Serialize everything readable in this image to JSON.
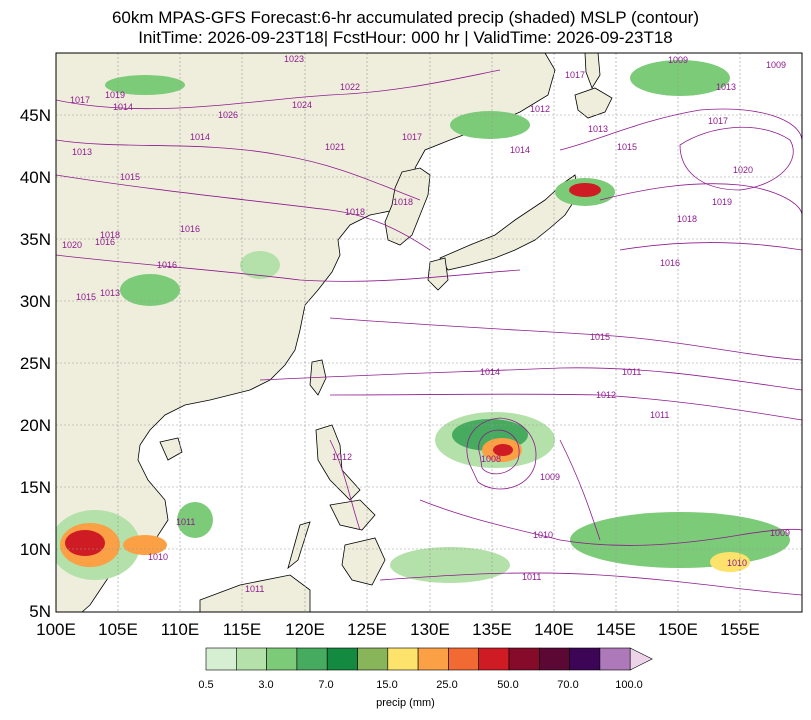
{
  "title": {
    "line1": "60km MPAS-GFS Forecast:6-hr accumulated precip (shaded) MSLP (contour)",
    "line2": "InitTime: 2026-09-23T18| FcstHour: 000 hr | ValidTime: 2026-09-23T18"
  },
  "axes": {
    "lat_ticks": [
      "45N",
      "40N",
      "35N",
      "30N",
      "25N",
      "20N",
      "15N",
      "10N",
      "5N"
    ],
    "lon_ticks": [
      "100E",
      "105E",
      "110E",
      "115E",
      "120E",
      "125E",
      "130E",
      "135E",
      "140E",
      "145E",
      "150E",
      "155E"
    ]
  },
  "colorbar": {
    "label": "precip (mm)",
    "colors": [
      "#d6efd3",
      "#b3e1a9",
      "#7ccb78",
      "#46ab5e",
      "#138a3f",
      "#88b55a",
      "#fde26b",
      "#fba045",
      "#f26a33",
      "#cf1b24",
      "#860b2a",
      "#5b0835",
      "#3d0556",
      "#ad79b9",
      "#ecd3ea"
    ],
    "tick_labels": [
      "0.5",
      "3.0",
      "7.0",
      "15.0",
      "25.0",
      "50.0",
      "70.0",
      "100.0"
    ]
  },
  "colors": {
    "land": "#efeedc",
    "ocean": "#ffffff",
    "coastline": "#000000",
    "borders": "#8c8c8c",
    "isobar": "#8e1b8e"
  },
  "isobar_labels": [
    "1023",
    "1022",
    "1024",
    "1026",
    "1019",
    "1014",
    "1017",
    "1013",
    "1014",
    "1015",
    "1021",
    "1017",
    "1018",
    "1018",
    "1016",
    "1020",
    "1016",
    "1018",
    "1013",
    "1015",
    "1016",
    "1012",
    "1017",
    "1009",
    "1009",
    "1013",
    "1017",
    "1015",
    "1020",
    "1019",
    "1018",
    "1016",
    "1014",
    "1013",
    "1015",
    "1014",
    "1012",
    "1011",
    "1008",
    "1009",
    "1010",
    "1012",
    "1011",
    "1011",
    "1010",
    "1009",
    "1010",
    "1011",
    "1011"
  ]
}
